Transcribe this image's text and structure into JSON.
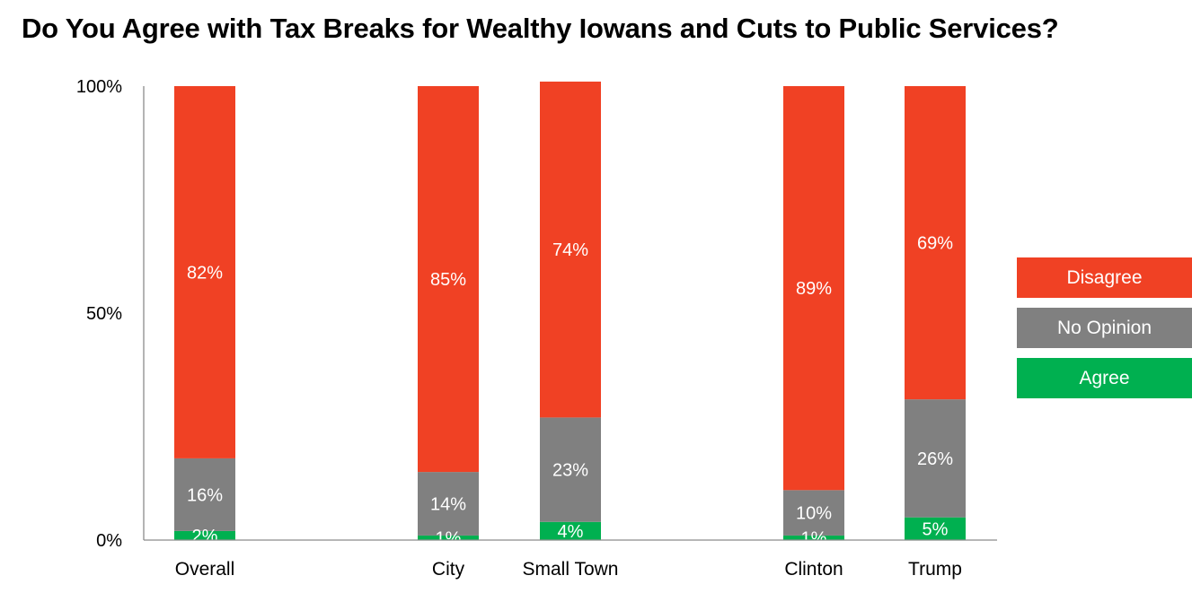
{
  "chart_data": {
    "type": "bar",
    "stacked": true,
    "title": "Do You Agree with Tax Breaks for Wealthy Iowans and Cuts to Public Services?",
    "categories": [
      "Overall",
      "",
      "City",
      "Small Town",
      "",
      "Clinton",
      "Trump"
    ],
    "series": [
      {
        "name": "Agree",
        "color": "#00B050",
        "values": [
          2,
          null,
          1,
          4,
          null,
          1,
          5
        ],
        "labels": [
          "2%",
          "",
          "1%",
          "4%",
          "",
          "1%",
          "5%"
        ]
      },
      {
        "name": "No Opinion",
        "color": "#808080",
        "values": [
          16,
          null,
          14,
          23,
          null,
          10,
          26
        ],
        "labels": [
          "16%",
          "",
          "14%",
          "23%",
          "",
          "10%",
          "26%"
        ]
      },
      {
        "name": "Disagree",
        "color": "#F04124",
        "values": [
          82,
          null,
          85,
          74,
          null,
          89,
          69
        ],
        "labels": [
          "82%",
          "",
          "85%",
          "74%",
          "",
          "89%",
          "69%"
        ]
      }
    ],
    "ylim": [
      0,
      100
    ],
    "yticks": [
      "0%",
      "50%",
      "100%"
    ],
    "grid": false,
    "legend_position": "right",
    "legend_order": [
      "Disagree",
      "No Opinion",
      "Agree"
    ]
  }
}
